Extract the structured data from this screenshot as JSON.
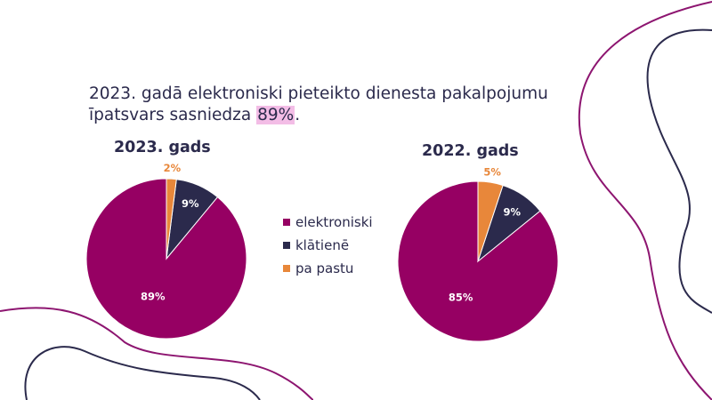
{
  "headline": {
    "text": "2023. gadā elektroniski pieteikto dienesta pakalpojumu īpatsvars sasniedza ",
    "highlight": "89%",
    "suffix": "."
  },
  "colors": {
    "elektroniski": "#960063",
    "klatiene": "#2b2a4c",
    "pa_pastu": "#e8873a",
    "decor_purple": "#8d1570",
    "decor_navy": "#2b2a4c"
  },
  "legend": [
    {
      "label": "elektroniski",
      "color": "#960063"
    },
    {
      "label": "klātienē",
      "color": "#2b2a4c"
    },
    {
      "label": "pa pastu",
      "color": "#e8873a"
    }
  ],
  "chart_data": [
    {
      "type": "pie",
      "title": "2023. gads",
      "categories": [
        "elektroniski",
        "klātienē",
        "pa pastu"
      ],
      "values": [
        89,
        9,
        2
      ],
      "labels": [
        "89%",
        "9%",
        "2%"
      ],
      "colors": [
        "#960063",
        "#2b2a4c",
        "#e8873a"
      ],
      "legend": "center"
    },
    {
      "type": "pie",
      "title": "2022. gads",
      "categories": [
        "elektroniski",
        "klātienē",
        "pa pastu"
      ],
      "values": [
        85,
        9,
        5
      ],
      "labels": [
        "85%",
        "9%",
        "5%"
      ],
      "colors": [
        "#960063",
        "#2b2a4c",
        "#e8873a"
      ],
      "legend": "center"
    }
  ]
}
